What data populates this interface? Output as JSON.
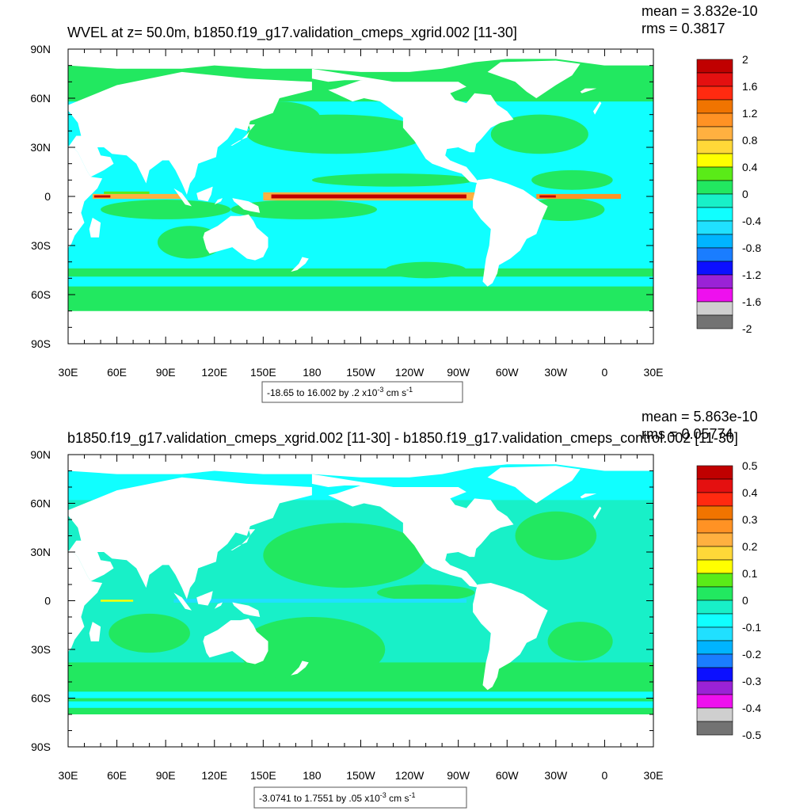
{
  "palette": [
    "#737373",
    "#cfcfcf",
    "#ee10ee",
    "#9a22d6",
    "#0c10ff",
    "#1a7dff",
    "#00b4ff",
    "#20e0ff",
    "#10ffff",
    "#18f0c8",
    "#22e860",
    "#5aeb18",
    "#ffff00",
    "#ffd838",
    "#ffb040",
    "#ff9224",
    "#f07400",
    "#ff2a10",
    "#e41010",
    "#c00000"
  ],
  "land_color": "#ffffff",
  "chart_data": [
    {
      "type": "heatmap",
      "title": "WVEL at z=  50.0m, b1850.f19_g17.validation_cmeps_xgrid.002 [11-30]",
      "stats": [
        "mean = 3.832e-10",
        "rms = 0.3817"
      ],
      "x_ticks": [
        "30E",
        "60E",
        "90E",
        "120E",
        "150E",
        "180",
        "150W",
        "120W",
        "90W",
        "60W",
        "30W",
        "0",
        "30E"
      ],
      "y_ticks": [
        "90N",
        "60N",
        "30N",
        "0",
        "30S",
        "60S",
        "90S"
      ],
      "x_range": [
        30,
        390
      ],
      "y_range": [
        -90,
        90
      ],
      "colorbar_labels": [
        "2",
        "1.6",
        "1.2",
        "0.8",
        "0.4",
        "0",
        "-0.4",
        "-0.8",
        "-1.2",
        "-1.6",
        "-2"
      ],
      "levels": [
        -2.0,
        -1.8,
        -1.6,
        -1.4,
        -1.2,
        -1.0,
        -0.8,
        -0.6,
        -0.4,
        -0.2,
        0,
        0.2,
        0.4,
        0.6,
        0.8,
        1.0,
        1.2,
        1.4,
        1.6,
        1.8,
        2.0
      ],
      "info": {
        "pre": "-18.65 to 16.002 by .2 x10",
        "exp": "-3",
        "mid": " cm s",
        "exp2": "-1"
      }
    },
    {
      "type": "heatmap",
      "title": "b1850.f19_g17.validation_cmeps_xgrid.002 [11-30] - b1850.f19_g17.validation_cmeps_control.002 [11-30]",
      "stats": [
        "mean = 5.863e-10",
        "rms = 0.05774"
      ],
      "x_ticks": [
        "30E",
        "60E",
        "90E",
        "120E",
        "150E",
        "180",
        "150W",
        "120W",
        "90W",
        "60W",
        "30W",
        "0",
        "30E"
      ],
      "y_ticks": [
        "90N",
        "60N",
        "30N",
        "0",
        "30S",
        "60S",
        "90S"
      ],
      "x_range": [
        30,
        390
      ],
      "y_range": [
        -90,
        90
      ],
      "colorbar_labels": [
        "0.5",
        "0.4",
        "0.3",
        "0.2",
        "0.1",
        "0",
        "-0.1",
        "-0.2",
        "-0.3",
        "-0.4",
        "-0.5"
      ],
      "levels": [
        -0.5,
        -0.45,
        -0.4,
        -0.35,
        -0.3,
        -0.25,
        -0.2,
        -0.15,
        -0.1,
        -0.05,
        0,
        0.05,
        0.1,
        0.15,
        0.2,
        0.25,
        0.3,
        0.35,
        0.4,
        0.45,
        0.5
      ],
      "info": {
        "pre": "-3.0741 to 1.7551 by .05 x10",
        "exp": "-3",
        "mid": " cm s",
        "exp2": "-1"
      }
    }
  ]
}
